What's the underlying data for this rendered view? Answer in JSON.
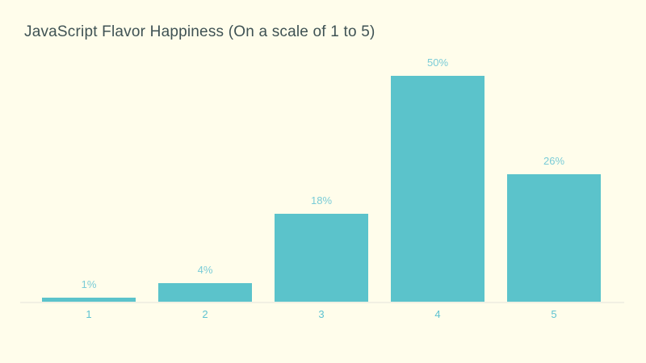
{
  "chart_data": {
    "type": "bar",
    "title": "JavaScript Flavor Happiness (On a scale of 1 to 5)",
    "categories": [
      "1",
      "2",
      "3",
      "4",
      "5"
    ],
    "values": [
      1,
      4,
      18,
      50,
      26
    ],
    "value_labels": [
      "1%",
      "4%",
      "18%",
      "50%",
      "26%"
    ],
    "xlabel": "",
    "ylabel": "",
    "ylim": [
      0,
      50
    ],
    "grid": false,
    "legend_position": "none",
    "colors": {
      "background": "#fffdeb",
      "bar": "#5bc3cb",
      "title_text": "#3f5254",
      "value_label_text": "#7accd7",
      "tick_label_text": "#5ec3d1",
      "axis_line": "#f1f0e3"
    }
  }
}
